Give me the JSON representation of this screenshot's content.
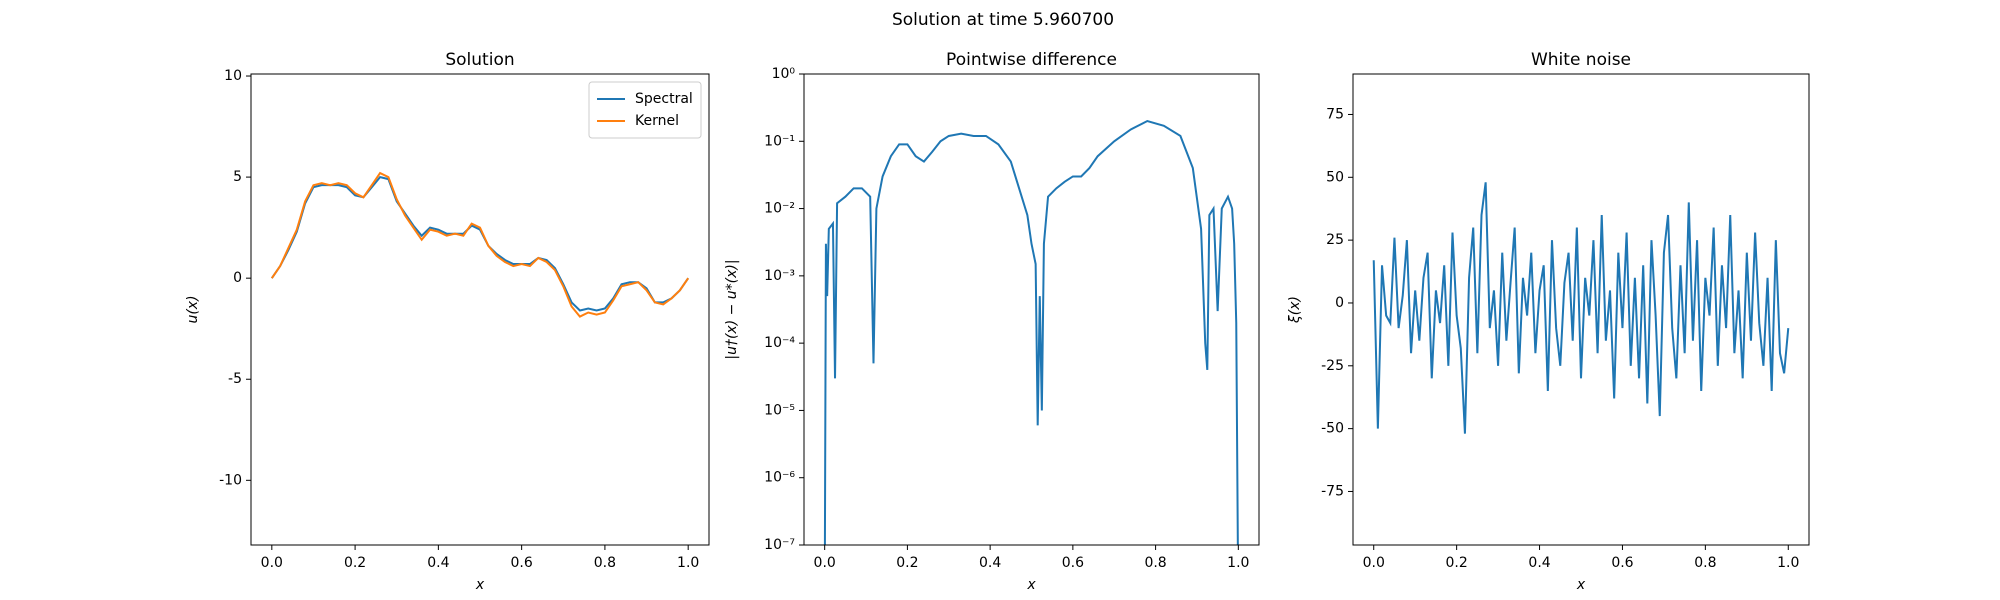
{
  "title": "Solution at time 5.960700",
  "chart_data": [
    {
      "type": "line",
      "title": "Solution",
      "xlabel": "x",
      "ylabel": "u(x)",
      "x": [
        0,
        0.02,
        0.04,
        0.06,
        0.08,
        0.1,
        0.12,
        0.14,
        0.16,
        0.18,
        0.2,
        0.22,
        0.24,
        0.26,
        0.28,
        0.3,
        0.32,
        0.34,
        0.36,
        0.38,
        0.4,
        0.42,
        0.44,
        0.46,
        0.48,
        0.5,
        0.52,
        0.54,
        0.56,
        0.58,
        0.6,
        0.62,
        0.64,
        0.66,
        0.68,
        0.7,
        0.72,
        0.74,
        0.76,
        0.78,
        0.8,
        0.82,
        0.84,
        0.86,
        0.88,
        0.9,
        0.92,
        0.94,
        0.96,
        0.98,
        1.0
      ],
      "series": [
        {
          "name": "Spectral",
          "color": "#1f77b4",
          "values": [
            0,
            0.6,
            1.4,
            2.3,
            3.7,
            4.5,
            4.6,
            4.6,
            4.6,
            4.5,
            4.1,
            4.0,
            4.5,
            5.0,
            4.9,
            3.8,
            3.2,
            2.6,
            2.1,
            2.5,
            2.4,
            2.2,
            2.2,
            2.2,
            2.6,
            2.4,
            1.6,
            1.2,
            0.9,
            0.7,
            0.7,
            0.7,
            1.0,
            0.9,
            0.5,
            -0.3,
            -1.2,
            -1.6,
            -1.5,
            -1.6,
            -1.5,
            -1.0,
            -0.3,
            -0.2,
            -0.2,
            -0.5,
            -1.2,
            -1.2,
            -1.0,
            -0.6,
            0
          ]
        },
        {
          "name": "Kernel",
          "color": "#ff7f0e",
          "values": [
            0,
            0.6,
            1.5,
            2.4,
            3.8,
            4.6,
            4.7,
            4.6,
            4.7,
            4.6,
            4.2,
            4.0,
            4.6,
            5.2,
            5.0,
            3.9,
            3.1,
            2.5,
            1.9,
            2.4,
            2.3,
            2.1,
            2.2,
            2.1,
            2.7,
            2.5,
            1.6,
            1.1,
            0.8,
            0.6,
            0.7,
            0.6,
            1.0,
            0.8,
            0.4,
            -0.4,
            -1.4,
            -1.9,
            -1.7,
            -1.8,
            -1.7,
            -1.1,
            -0.4,
            -0.3,
            -0.2,
            -0.6,
            -1.2,
            -1.3,
            -1.0,
            -0.6,
            0
          ]
        }
      ],
      "xlim": [
        -0.05,
        1.05
      ],
      "ylim": [
        -13.2,
        10.1
      ],
      "xticks": [
        {
          "value": 0,
          "label": "0.0"
        },
        0.2,
        0.4,
        0.6,
        0.8,
        {
          "value": 1,
          "label": "1.0"
        }
      ],
      "yticks": [
        -10,
        -5,
        0,
        5,
        10
      ],
      "legend": "upper right"
    },
    {
      "type": "line",
      "title": "Pointwise difference",
      "xlabel": "x",
      "ylabel": "|u†(x) − u*(x)|",
      "log_y": true,
      "x": [
        0,
        0.003,
        0.006,
        0.01,
        0.02,
        0.025,
        0.03,
        0.05,
        0.07,
        0.09,
        0.11,
        0.118,
        0.125,
        0.14,
        0.16,
        0.18,
        0.2,
        0.22,
        0.24,
        0.26,
        0.28,
        0.3,
        0.33,
        0.36,
        0.39,
        0.42,
        0.45,
        0.47,
        0.49,
        0.5,
        0.51,
        0.515,
        0.52,
        0.525,
        0.53,
        0.54,
        0.56,
        0.58,
        0.6,
        0.62,
        0.64,
        0.66,
        0.7,
        0.74,
        0.78,
        0.82,
        0.86,
        0.89,
        0.91,
        0.92,
        0.925,
        0.93,
        0.94,
        0.95,
        0.96,
        0.975,
        0.985,
        0.99,
        0.995,
        1.0
      ],
      "series": [
        {
          "color": "#1f77b4",
          "values": [
            1e-08,
            0.003,
            0.0005,
            0.005,
            0.006,
            3e-05,
            0.012,
            0.015,
            0.02,
            0.02,
            0.015,
            5e-05,
            0.01,
            0.03,
            0.06,
            0.09,
            0.09,
            0.06,
            0.05,
            0.07,
            0.1,
            0.12,
            0.13,
            0.12,
            0.12,
            0.09,
            0.05,
            0.02,
            0.008,
            0.003,
            0.0015,
            6e-06,
            0.0005,
            1e-05,
            0.003,
            0.015,
            0.02,
            0.025,
            0.03,
            0.03,
            0.04,
            0.06,
            0.1,
            0.15,
            0.2,
            0.17,
            0.12,
            0.04,
            0.005,
            0.0001,
            4e-05,
            0.008,
            0.01,
            0.0003,
            0.01,
            0.015,
            0.01,
            0.003,
            0.0002,
            1e-08
          ]
        }
      ],
      "xlim": [
        -0.05,
        1.05
      ],
      "ylim": [
        1e-07,
        1
      ],
      "xticks": [
        {
          "value": 0,
          "label": "0.0"
        },
        0.2,
        0.4,
        0.6,
        0.8,
        {
          "value": 1,
          "label": "1.0"
        }
      ],
      "yticks": [
        {
          "value": 1e-07,
          "label": "10⁻⁷"
        },
        {
          "value": 1e-06,
          "label": "10⁻⁶"
        },
        {
          "value": 1e-05,
          "label": "10⁻⁵"
        },
        {
          "value": 0.0001,
          "label": "10⁻⁴"
        },
        {
          "value": 0.001,
          "label": "10⁻³"
        },
        {
          "value": 0.01,
          "label": "10⁻²"
        },
        {
          "value": 0.1,
          "label": "10⁻¹"
        },
        {
          "value": 1,
          "label": "10⁰"
        }
      ]
    },
    {
      "type": "line",
      "title": "White noise",
      "xlabel": "x",
      "ylabel": "ξ(x)",
      "x": [
        0,
        0.01,
        0.02,
        0.03,
        0.04,
        0.05,
        0.06,
        0.07,
        0.08,
        0.09,
        0.1,
        0.11,
        0.12,
        0.13,
        0.14,
        0.15,
        0.16,
        0.17,
        0.18,
        0.19,
        0.2,
        0.21,
        0.22,
        0.23,
        0.24,
        0.25,
        0.26,
        0.27,
        0.28,
        0.29,
        0.3,
        0.31,
        0.32,
        0.33,
        0.34,
        0.35,
        0.36,
        0.37,
        0.38,
        0.39,
        0.4,
        0.41,
        0.42,
        0.43,
        0.44,
        0.45,
        0.46,
        0.47,
        0.48,
        0.49,
        0.5,
        0.51,
        0.52,
        0.53,
        0.54,
        0.55,
        0.56,
        0.57,
        0.58,
        0.59,
        0.6,
        0.61,
        0.62,
        0.63,
        0.64,
        0.65,
        0.66,
        0.67,
        0.68,
        0.69,
        0.7,
        0.71,
        0.72,
        0.73,
        0.74,
        0.75,
        0.76,
        0.77,
        0.78,
        0.79,
        0.8,
        0.81,
        0.82,
        0.83,
        0.84,
        0.85,
        0.86,
        0.87,
        0.88,
        0.89,
        0.9,
        0.91,
        0.92,
        0.93,
        0.94,
        0.95,
        0.96,
        0.97,
        0.98,
        0.99,
        1.0
      ],
      "series": [
        {
          "color": "#1f77b4",
          "values": [
            17,
            -50,
            15,
            -5,
            -8,
            26,
            -10,
            3,
            25,
            -20,
            5,
            -15,
            10,
            20,
            -30,
            5,
            -8,
            15,
            -25,
            28,
            -5,
            -18,
            -52,
            10,
            30,
            -20,
            35,
            48,
            -10,
            5,
            -25,
            20,
            -15,
            8,
            30,
            -28,
            10,
            -5,
            20,
            -20,
            5,
            15,
            -35,
            25,
            -10,
            -25,
            8,
            20,
            -15,
            30,
            -30,
            10,
            -5,
            25,
            -20,
            35,
            -15,
            5,
            -38,
            20,
            -10,
            28,
            -25,
            10,
            -30,
            15,
            -40,
            25,
            -5,
            -45,
            20,
            35,
            -10,
            -30,
            15,
            -20,
            40,
            -15,
            25,
            -35,
            10,
            -5,
            30,
            -25,
            15,
            -10,
            35,
            -20,
            5,
            -30,
            20,
            -15,
            28,
            -8,
            -25,
            10,
            -35,
            25,
            -20,
            -28,
            -10
          ]
        }
      ],
      "xlim": [
        -0.05,
        1.05
      ],
      "ylim": [
        -96.3,
        91.1
      ],
      "xticks": [
        {
          "value": 0,
          "label": "0.0"
        },
        0.2,
        0.4,
        0.6,
        0.8,
        {
          "value": 1,
          "label": "1.0"
        }
      ],
      "yticks": [
        -75,
        -50,
        -25,
        0,
        25,
        50,
        75
      ]
    }
  ]
}
